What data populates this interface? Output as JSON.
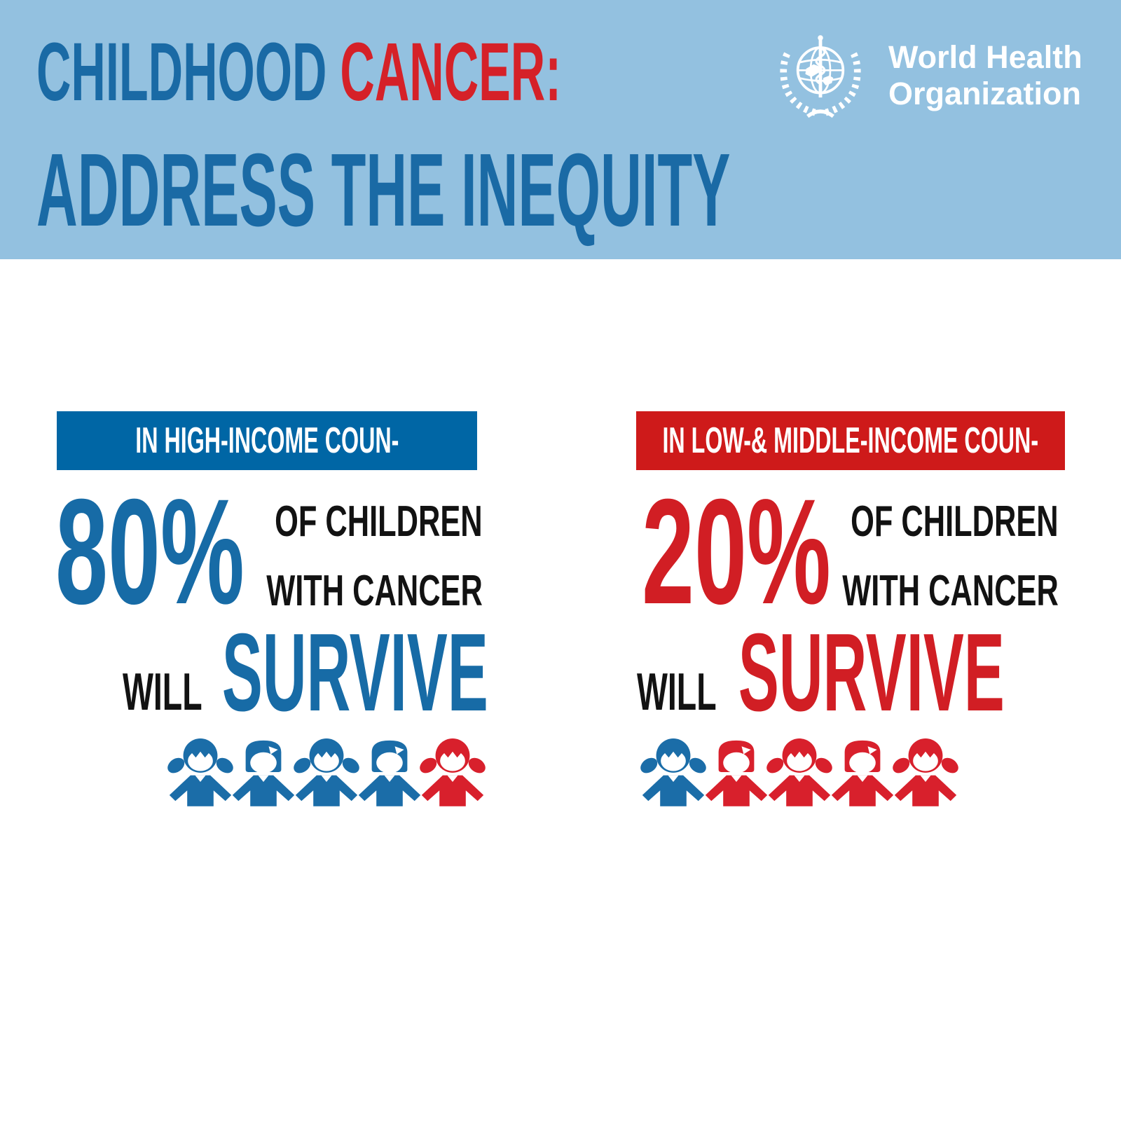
{
  "header": {
    "title_part1": "CHILDHOOD ",
    "title_part2": "CANCER:",
    "subtitle": "ADDRESS THE INEQUITY",
    "logo_line1": "World Health",
    "logo_line2": "Organization"
  },
  "columns": [
    {
      "banner": "IN HIGH-INCOME COUN-",
      "percent": "80%",
      "desc_line1": "OF CHILDREN",
      "desc_line2": "WITH CANCER",
      "will": "WILL",
      "survive": "SURVIVE",
      "theme": "blue",
      "children": [
        {
          "type": "girl",
          "color": "blue"
        },
        {
          "type": "boy",
          "color": "blue"
        },
        {
          "type": "girl",
          "color": "blue"
        },
        {
          "type": "boy",
          "color": "blue"
        },
        {
          "type": "girl",
          "color": "red"
        }
      ]
    },
    {
      "banner": "IN LOW-& MIDDLE-INCOME COUN-",
      "percent": "20%",
      "desc_line1": "OF CHILDREN",
      "desc_line2": "WITH CANCER",
      "will": "WILL",
      "survive": "SURVIVE",
      "theme": "red",
      "children": [
        {
          "type": "girl",
          "color": "blue"
        },
        {
          "type": "boy",
          "color": "red"
        },
        {
          "type": "girl",
          "color": "red"
        },
        {
          "type": "boy",
          "color": "red"
        },
        {
          "type": "girl",
          "color": "red"
        }
      ]
    }
  ],
  "colors": {
    "header_bg": "#93C1E0",
    "title_blue": "#1A6AA5",
    "red": "#D52128",
    "banner_blue": "#0066A5",
    "banner_red": "#CE1A1A",
    "stat_blue": "#176BA6",
    "stat_red": "#D11E24",
    "kid_blue": "#1B6DA8",
    "kid_red": "#D8202C",
    "black": "#121212"
  }
}
